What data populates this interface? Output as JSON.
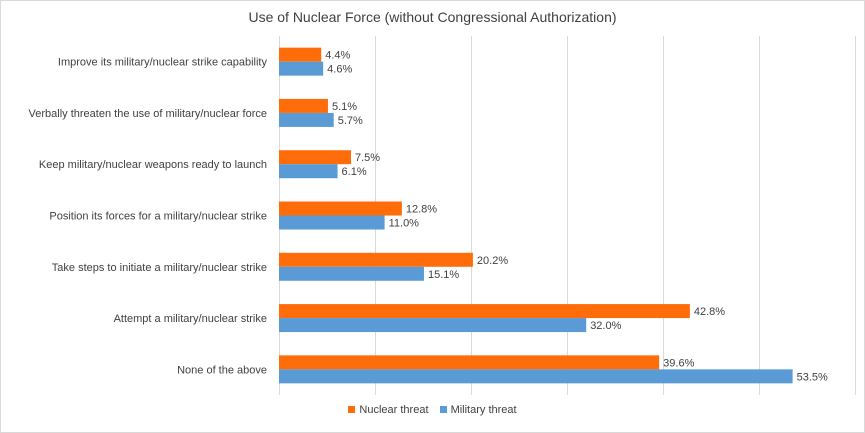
{
  "chart_data": {
    "type": "bar",
    "orientation": "horizontal",
    "title": "Use of Nuclear Force (without Congressional Authorization)",
    "categories": [
      "Improve its military/nuclear strike capability",
      "Verbally threaten the use of military/nuclear force",
      "Keep military/nuclear weapons ready to launch",
      "Position its forces for a military/nuclear strike",
      "Take steps to initiate a military/nuclear strike",
      "Attempt a military/nuclear strike",
      "None of the above"
    ],
    "series": [
      {
        "name": "Nuclear threat",
        "color": "#ff6d0a",
        "values": [
          4.4,
          5.1,
          7.5,
          12.8,
          20.2,
          42.8,
          39.6
        ],
        "labels": [
          "4.4%",
          "5.1%",
          "7.5%",
          "12.8%",
          "20.2%",
          "42.8%",
          "39.6%"
        ]
      },
      {
        "name": "Military threat",
        "color": "#5b9bd5",
        "values": [
          4.6,
          5.7,
          6.1,
          11.0,
          15.1,
          32.0,
          53.5
        ],
        "labels": [
          "4.6%",
          "5.7%",
          "6.1%",
          "11.0%",
          "15.1%",
          "32.0%",
          "53.5%"
        ]
      }
    ],
    "xlim": [
      0,
      60
    ],
    "grid": true,
    "legend_position": "bottom"
  }
}
